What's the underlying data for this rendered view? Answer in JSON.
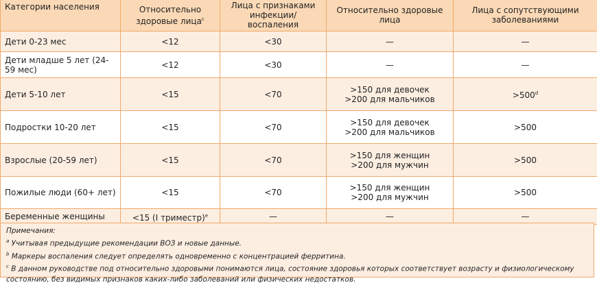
{
  "header": {
    "category": "Категории населения",
    "columns": [
      "Относительно здоровые лица",
      "Лица с признаками инфекции/воспаления",
      "Относительно здоровые лица",
      "Лица с сопутствующими заболеваниями"
    ],
    "col1_sup": "c"
  },
  "rows": [
    {
      "category": "Дети 0-23 мес",
      "c1": "<12",
      "c2": "<30",
      "c3a": "—",
      "c3b": "",
      "c4": "—"
    },
    {
      "category": "Дети младше 5 лет (24-59 мес)",
      "c1": "<12",
      "c2": "<30",
      "c3a": "—",
      "c3b": "",
      "c4": "—"
    },
    {
      "category": "Дети 5-10 лет",
      "c1": "<15",
      "c2": "<70",
      "c3a": ">150 для девочек",
      "c3b": ">200 для мальчиков",
      "c4": ">500",
      "c4_sup": "d"
    },
    {
      "category": "Подростки 10-20 лет",
      "c1": "<15",
      "c2": "<70",
      "c3a": ">150 для девочек",
      "c3b": ">200 для мальчиков",
      "c4": ">500"
    },
    {
      "category": "Взрослые (20-59 лет)",
      "c1": "<15",
      "c2": "<70",
      "c3a": ">150 для женщин",
      "c3b": ">200 для мужчин",
      "c4": ">500"
    },
    {
      "category": "Пожилые люди (60+ лет)",
      "c1": "<15",
      "c2": "<70",
      "c3a": ">150 для женщин",
      "c3b": ">200 для мужчин",
      "c4": ">500"
    },
    {
      "category": "Беременные женщины",
      "c1": "<15 (I триместр)",
      "c1_sup": "e",
      "c2": "—",
      "c3a": "—",
      "c3b": "",
      "c4": "—"
    }
  ],
  "notes": {
    "title": "Примечания:",
    "items": [
      {
        "sup": "a",
        "text": "Учитывая предыдущие рекомендации ВОЗ и новые данные."
      },
      {
        "sup": "b",
        "text": "Маркеры воспаления следует определять одновременно с концентрацией ферритина."
      },
      {
        "sup": "c",
        "text": "В данном руководстве под относительно здоровыми понимаются лица, состояние здоровья которых соответствует возрасту и физиологическому состоянию, без видимых признаков каких-либо заболеваний или физических недостатков."
      }
    ]
  },
  "colors": {
    "header_bg": "#fbd9b6",
    "row_tint": "#fdeee2",
    "border": "#f0a868"
  }
}
